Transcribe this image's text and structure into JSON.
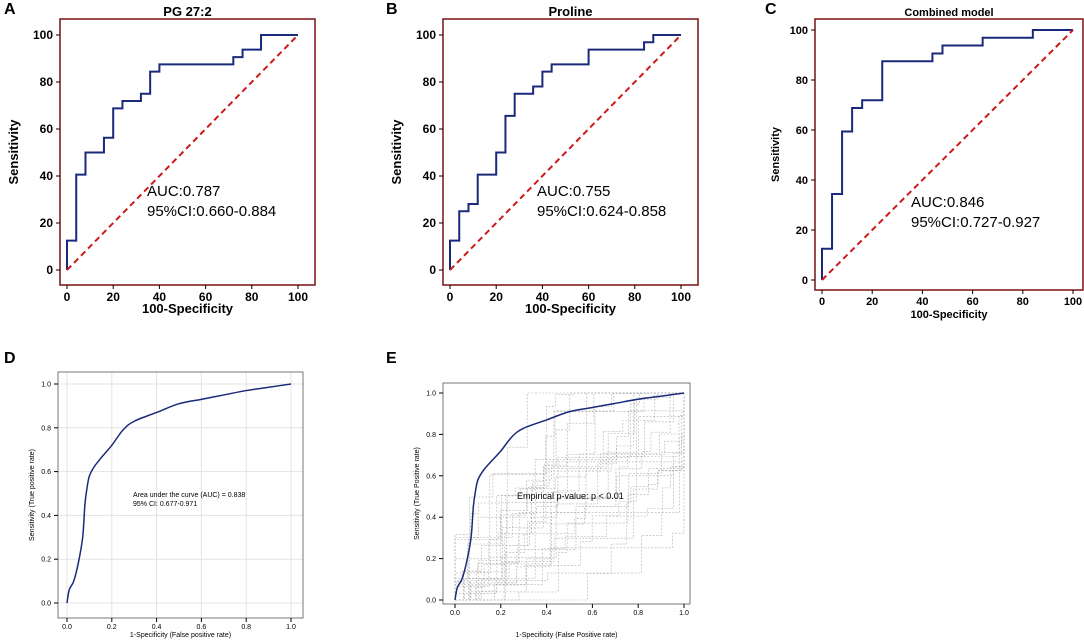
{
  "chart_data": [
    {
      "panel": "A",
      "type": "line",
      "title": "PG 27:2",
      "xlabel": "100-Specificity",
      "ylabel": "Sensitivity",
      "xlim": [
        0,
        100
      ],
      "ylim": [
        0,
        100
      ],
      "xticks": [
        0,
        20,
        40,
        60,
        80,
        100
      ],
      "yticks": [
        0,
        20,
        40,
        60,
        80,
        100
      ],
      "annotation": [
        "AUC:0.787",
        "95%CI:0.660-0.884"
      ],
      "series": [
        {
          "name": "ROC",
          "style": "step",
          "x": [
            0,
            0,
            4,
            4,
            8,
            8,
            16,
            16,
            20,
            20,
            24,
            24,
            32,
            32,
            36,
            36,
            40,
            40,
            72,
            72,
            76,
            76,
            84,
            84,
            100
          ],
          "y": [
            0,
            12.5,
            12.5,
            40.6,
            40.6,
            50,
            50,
            56.3,
            56.3,
            68.8,
            68.8,
            71.9,
            71.9,
            75,
            75,
            84.4,
            84.4,
            87.5,
            87.5,
            90.6,
            90.6,
            93.8,
            93.8,
            100,
            100
          ]
        },
        {
          "name": "Reference",
          "style": "dashed",
          "x": [
            0,
            100
          ],
          "y": [
            0,
            100
          ]
        }
      ]
    },
    {
      "panel": "B",
      "type": "line",
      "title": "Proline",
      "xlabel": "100-Specificity",
      "ylabel": "Sensitivity",
      "xlim": [
        0,
        100
      ],
      "ylim": [
        0,
        100
      ],
      "xticks": [
        0,
        20,
        40,
        60,
        80,
        100
      ],
      "yticks": [
        0,
        20,
        40,
        60,
        80,
        100
      ],
      "annotation": [
        "AUC:0.755",
        "95%CI:0.624-0.858"
      ],
      "series": [
        {
          "name": "ROC",
          "style": "step",
          "x": [
            0,
            0,
            4,
            4,
            8,
            8,
            12,
            12,
            20,
            20,
            24,
            24,
            28,
            28,
            36,
            36,
            40,
            40,
            44,
            44,
            48,
            48,
            60,
            60,
            84,
            84,
            88,
            88,
            100
          ],
          "y": [
            0,
            12.5,
            12.5,
            25,
            25,
            28.1,
            28.1,
            40.6,
            40.6,
            50,
            50,
            65.6,
            65.6,
            75,
            75,
            78.1,
            78.1,
            84.4,
            84.4,
            87.5,
            87.5,
            87.5,
            87.5,
            93.8,
            93.8,
            96.9,
            96.9,
            100,
            100
          ]
        },
        {
          "name": "Reference",
          "style": "dashed",
          "x": [
            0,
            100
          ],
          "y": [
            0,
            100
          ]
        }
      ]
    },
    {
      "panel": "C",
      "type": "line",
      "title": "Combined model",
      "xlabel": "100-Specificity",
      "ylabel": "Sensitivity",
      "xlim": [
        0,
        100
      ],
      "ylim": [
        0,
        100
      ],
      "xticks": [
        0,
        20,
        40,
        60,
        80,
        100
      ],
      "yticks": [
        0,
        20,
        40,
        60,
        80,
        100
      ],
      "annotation": [
        "AUC:0.846",
        "95%CI:0.727-0.927"
      ],
      "series": [
        {
          "name": "ROC",
          "style": "step",
          "x": [
            0,
            0,
            4,
            4,
            8,
            8,
            12,
            12,
            16,
            16,
            24,
            24,
            44,
            44,
            48,
            48,
            64,
            64,
            84,
            84,
            100
          ],
          "y": [
            0,
            12.5,
            12.5,
            34.4,
            34.4,
            59.4,
            59.4,
            68.8,
            68.8,
            71.9,
            71.9,
            87.5,
            87.5,
            90.6,
            90.6,
            93.8,
            93.8,
            96.9,
            96.9,
            100,
            100
          ]
        },
        {
          "name": "Reference",
          "style": "dashed",
          "x": [
            0,
            100
          ],
          "y": [
            0,
            100
          ]
        }
      ]
    },
    {
      "panel": "D",
      "type": "line",
      "title": "",
      "xlabel": "1-Specificity (False positive rate)",
      "ylabel": "Sensitivity (True positive rate)",
      "xlim": [
        0,
        1
      ],
      "ylim": [
        0,
        1
      ],
      "xticks": [
        "0.0",
        "0.2",
        "0.4",
        "0.6",
        "0.8",
        "1.0"
      ],
      "yticks": [
        "0.0",
        "0.2",
        "0.4",
        "0.6",
        "0.8",
        "1.0"
      ],
      "annotation": [
        "Area under the curve (AUC) = 0.838",
        "95% CI: 0.677-0.971"
      ],
      "grid": true,
      "series": [
        {
          "name": "ROC",
          "style": "smooth",
          "x": [
            0,
            0.01,
            0.03,
            0.05,
            0.07,
            0.08,
            0.09,
            0.1,
            0.12,
            0.15,
            0.2,
            0.25,
            0.3,
            0.4,
            0.5,
            0.6,
            0.7,
            0.8,
            0.9,
            1.0
          ],
          "y": [
            0,
            0.06,
            0.1,
            0.18,
            0.3,
            0.45,
            0.53,
            0.58,
            0.62,
            0.66,
            0.72,
            0.79,
            0.83,
            0.87,
            0.91,
            0.93,
            0.95,
            0.97,
            0.985,
            1.0
          ]
        }
      ]
    },
    {
      "panel": "E",
      "type": "line",
      "title": "",
      "xlabel": "1-Specificity (False Positive rate)",
      "ylabel": "Sensitivity (True Positive rate)",
      "xlim": [
        0,
        1
      ],
      "ylim": [
        0,
        1
      ],
      "xticks": [
        "0.0",
        "0.2",
        "0.4",
        "0.6",
        "0.8",
        "1.0"
      ],
      "yticks": [
        "0.0",
        "0.2",
        "0.4",
        "0.6",
        "0.8",
        "1.0"
      ],
      "annotation": [
        "Empirical p-value:  p < 0.01"
      ],
      "series": [
        {
          "name": "ROC",
          "style": "smooth",
          "x": [
            0,
            0.01,
            0.03,
            0.05,
            0.07,
            0.08,
            0.09,
            0.1,
            0.12,
            0.15,
            0.2,
            0.25,
            0.3,
            0.4,
            0.5,
            0.6,
            0.7,
            0.8,
            0.9,
            1.0
          ],
          "y": [
            0,
            0.06,
            0.1,
            0.18,
            0.3,
            0.45,
            0.53,
            0.58,
            0.62,
            0.66,
            0.72,
            0.79,
            0.83,
            0.87,
            0.91,
            0.93,
            0.95,
            0.97,
            0.985,
            1.0
          ]
        },
        {
          "name": "Permutation ROCs",
          "style": "dashed-gray",
          "count": 30
        }
      ]
    }
  ]
}
